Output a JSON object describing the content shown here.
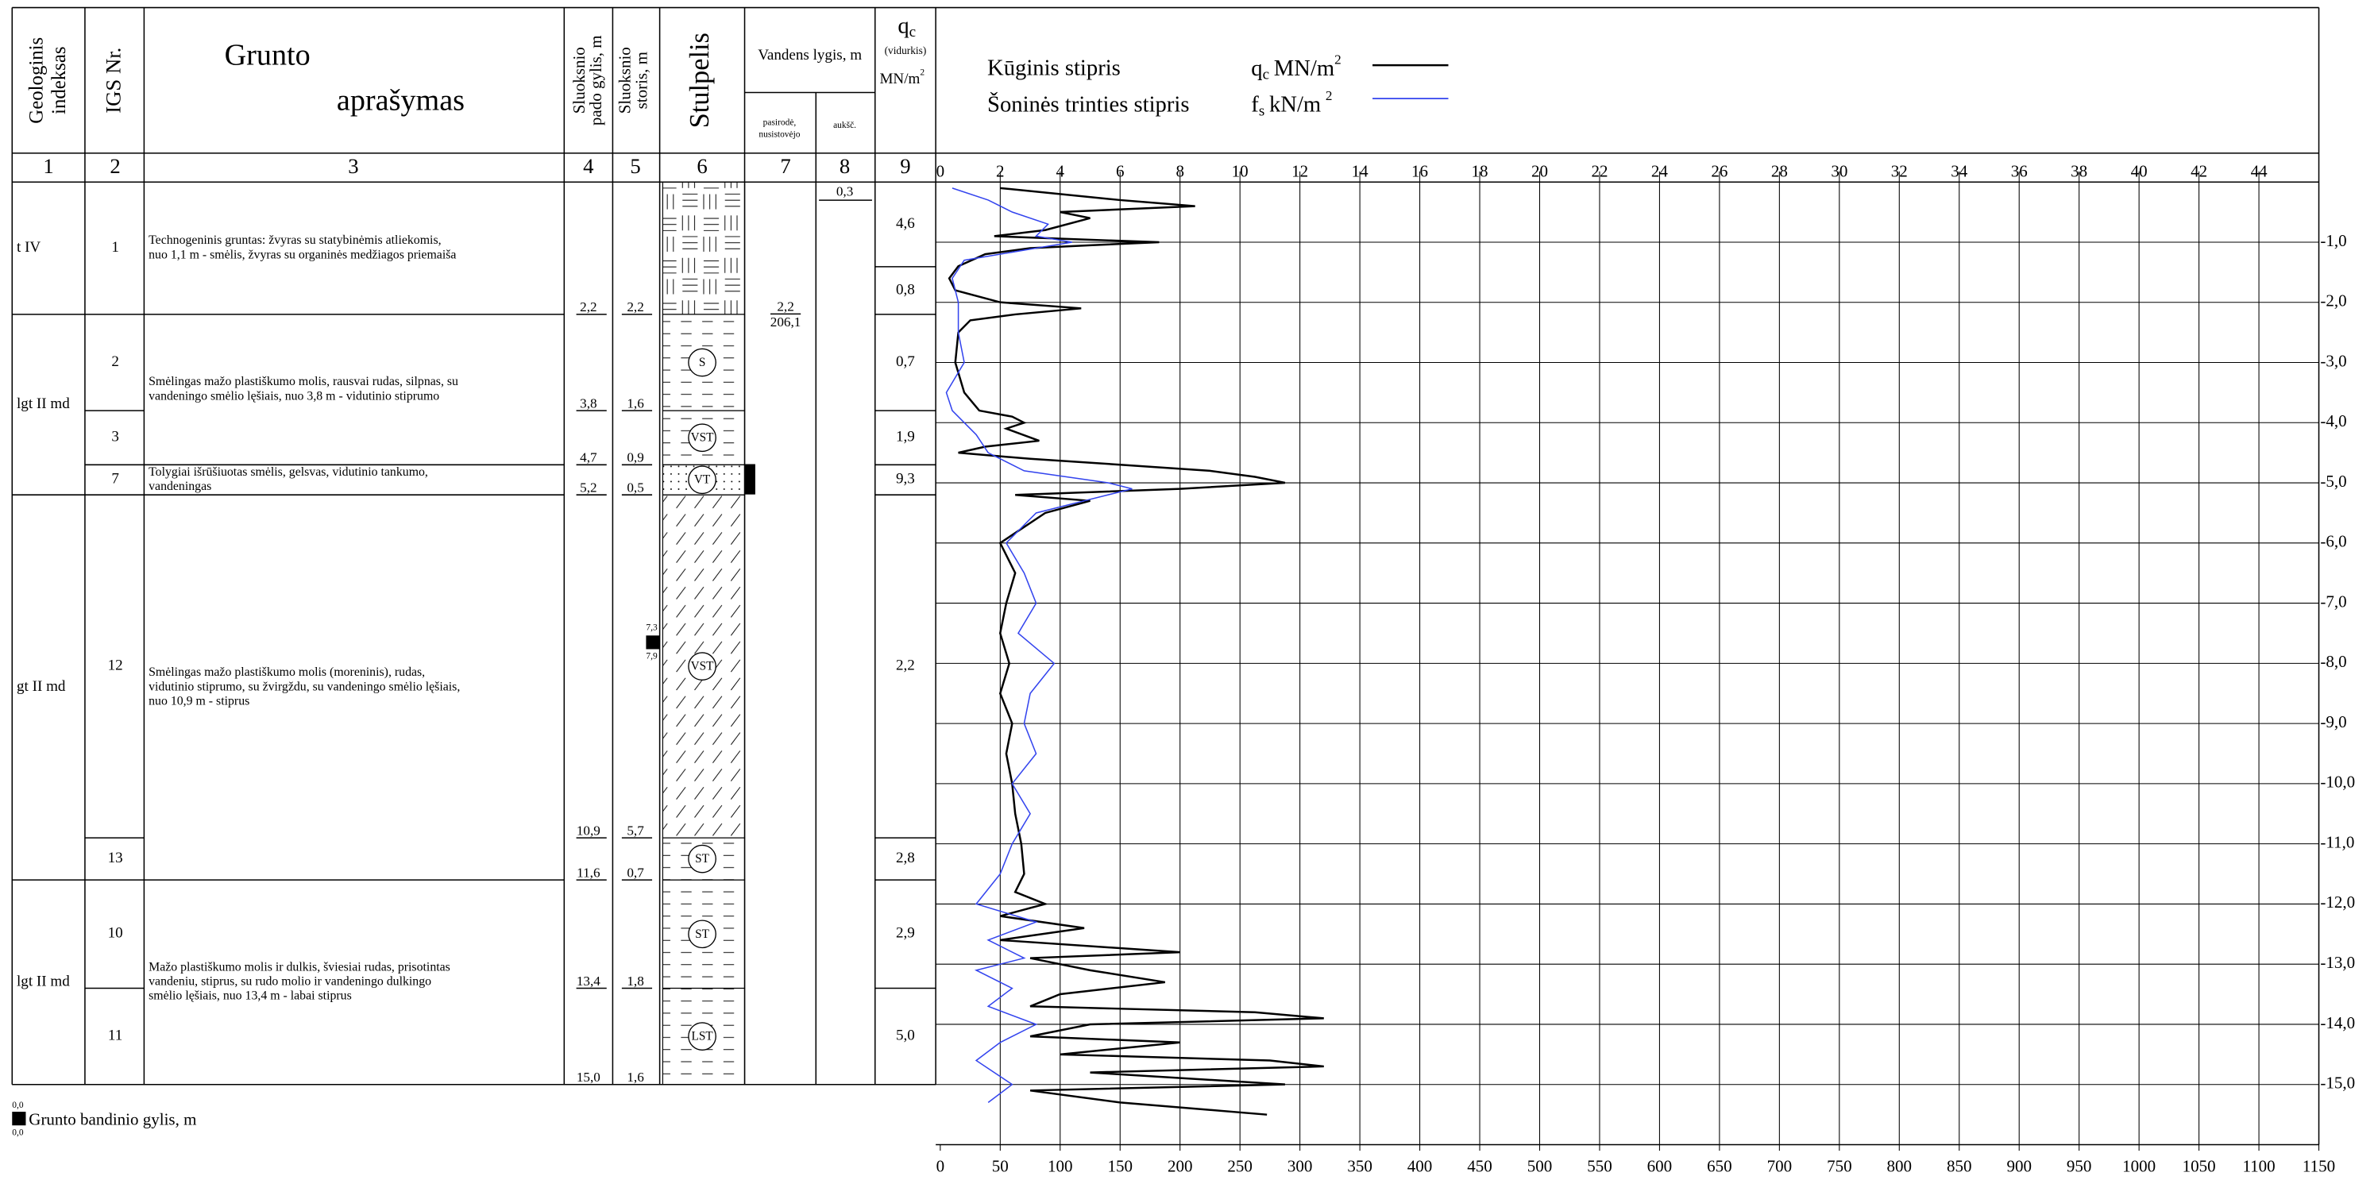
{
  "header": {
    "geo_index": [
      "Geologinis",
      "indeksas"
    ],
    "igs": "IGS Nr.",
    "description": [
      "Grunto",
      "aprašymas"
    ],
    "bottom_depth": [
      "Sluoksnio",
      "pado gylis, m"
    ],
    "thickness": [
      "Sluoksnio",
      "storis, m"
    ],
    "column": "Stulpelis",
    "water": "Vandens lygis, m",
    "water_appeared": [
      "pasirodė,",
      "nusistovėjo"
    ],
    "water_elev": "aukšč.",
    "qc_symbol": "q",
    "qc_sub": "c",
    "qc_note": "(vidurkis)",
    "qc_unit": "MN/m",
    "qc_unit_sup": "2"
  },
  "column_numbers": [
    "1",
    "2",
    "3",
    "4",
    "5",
    "6",
    "7",
    "8",
    "9"
  ],
  "log": {
    "groups": [
      {
        "index": "t IV",
        "units": [
          {
            "description": [
              "Technogeninis gruntas: žvyras su statybinėmis atliekomis,",
              "nuo 1,1 m - smėlis, žvyras su organinės medžiagos priemaiša"
            ],
            "layers": [
              {
                "igs": "1",
                "bottom": {
                  "value": 2.2,
                  "label": "2,2"
                },
                "thickness": {
                  "value": 2.2,
                  "label": "2,2"
                },
                "qc_avg": [
                  "4,6",
                  "0,8"
                ]
              }
            ]
          }
        ]
      },
      {
        "index": "lgt II md",
        "units": [
          {
            "description": [
              "Smėlingas mažo plastiškumo molis, rausvai rudas, silpnas, su",
              "vandeningo smėlio lęšiais, nuo 3,8 m - vidutinio stiprumo"
            ],
            "layers": [
              {
                "igs": "2",
                "symbol": "S",
                "bottom": {
                  "value": 3.8,
                  "label": "3,8"
                },
                "thickness": {
                  "value": 1.6,
                  "label": "1,6"
                },
                "qc_avg": [
                  "0,7"
                ]
              },
              {
                "igs": "3",
                "symbol": "VST",
                "bottom": {
                  "value": 4.7,
                  "label": "4,7"
                },
                "thickness": {
                  "value": 0.9,
                  "label": "0,9"
                },
                "qc_avg": [
                  "1,9"
                ]
              }
            ]
          },
          {
            "description": [
              "Tolygiai išrūšiuotas smėlis, gelsvas, vidutinio tankumo,",
              "vandeningas"
            ],
            "layers": [
              {
                "igs": "7",
                "symbol": "VT",
                "bottom": {
                  "value": 5.2,
                  "label": "5,2"
                },
                "thickness": {
                  "value": 0.5,
                  "label": "0,5"
                },
                "qc_avg": [
                  "9,3"
                ]
              }
            ]
          }
        ]
      },
      {
        "index": "gt II md",
        "units": [
          {
            "description": [
              "Smėlingas mažo plastiškumo molis (moreninis), rudas,",
              "vidutinio stiprumo, su žvirgždu, su vandeningo smėlio lęšiais,",
              "nuo 10,9 m - stiprus"
            ],
            "layers": [
              {
                "igs": "12",
                "symbol": "VST",
                "bottom": {
                  "value": 10.9,
                  "label": "10,9"
                },
                "thickness": {
                  "value": 5.7,
                  "label": "5,7"
                },
                "qc_avg": [
                  "2,2"
                ]
              },
              {
                "igs": "13",
                "symbol": "ST",
                "bottom": {
                  "value": 11.6,
                  "label": "11,6"
                },
                "thickness": {
                  "value": 0.7,
                  "label": "0,7"
                },
                "qc_avg": [
                  "2,8"
                ]
              }
            ]
          }
        ]
      },
      {
        "index": "lgt II md",
        "units": [
          {
            "description": [
              "Mažo plastiškumo molis ir dulkis, šviesiai rudas, prisotintas",
              "vandeniu, stiprus, su rudo molio ir vandeningo dulkingo",
              "smėlio lęšiais, nuo 13,4 m - labai stiprus"
            ],
            "layers": [
              {
                "igs": "10",
                "symbol": "ST",
                "bottom": {
                  "value": 13.4,
                  "label": "13,4"
                },
                "thickness": {
                  "value": 1.8,
                  "label": "1,8"
                },
                "qc_avg": [
                  "2,9"
                ]
              },
              {
                "igs": "11",
                "symbol": "LST",
                "bottom": {
                  "value": 15.0,
                  "label": "15,0"
                },
                "thickness": {
                  "value": 1.6,
                  "label": "1,6"
                },
                "qc_avg": [
                  "5,0"
                ]
              }
            ]
          }
        ]
      }
    ]
  },
  "water": {
    "level": "2,2",
    "elevation": "206,1",
    "appeared": "0,3"
  },
  "sample": {
    "top": "7,3",
    "bottom": "7,9"
  },
  "legend": {
    "top": "0,0",
    "bottom": "0,0",
    "label": "Grunto bandinio gylis, m"
  },
  "cpt": {
    "legend": {
      "qc_name": "Kūginis stipris",
      "fs_name": "Šoninės trinties stipris",
      "qc_symbol": "q",
      "qc_sub": "c",
      "qc_unit": "MN/m",
      "qc_sup": "2",
      "fs_symbol": "f",
      "fs_sub": "s",
      "fs_unit": "kN/m",
      "fs_sup": "2"
    },
    "qc_axis": {
      "xlim": [
        0,
        46
      ],
      "xticks": [
        0,
        2,
        4,
        6,
        8,
        10,
        12,
        14,
        16,
        18,
        20,
        22,
        24,
        26,
        28,
        30,
        32,
        34,
        36,
        38,
        40,
        42,
        44
      ]
    },
    "fs_axis": {
      "xlim": [
        0,
        1150
      ],
      "xticks": [
        0,
        50,
        100,
        150,
        200,
        250,
        300,
        350,
        400,
        450,
        500,
        550,
        600,
        650,
        700,
        750,
        800,
        850,
        900,
        950,
        1000,
        1050,
        1100,
        1150
      ]
    },
    "depth_axis": {
      "ylim": [
        0,
        16
      ],
      "yticks": [
        {
          "value": 1,
          "label": "-1,0"
        },
        {
          "value": 2,
          "label": "-2,0"
        },
        {
          "value": 3,
          "label": "-3,0"
        },
        {
          "value": 4,
          "label": "-4,0"
        },
        {
          "value": 5,
          "label": "-5,0"
        },
        {
          "value": 6,
          "label": "-6,0"
        },
        {
          "value": 7,
          "label": "-7,0"
        },
        {
          "value": 8,
          "label": "-8,0"
        },
        {
          "value": 9,
          "label": "-9,0"
        },
        {
          "value": 10,
          "label": "-10,0"
        },
        {
          "value": 11,
          "label": "-11,0"
        },
        {
          "value": 12,
          "label": "-12,0"
        },
        {
          "value": 13,
          "label": "-13,0"
        },
        {
          "value": 14,
          "label": "-14,0"
        },
        {
          "value": 15,
          "label": "-15,0"
        }
      ]
    },
    "curves": [
      {
        "axis": "qc",
        "color": "#000000",
        "depth": [
          0.1,
          0.3,
          0.4,
          0.5,
          0.6,
          0.8,
          0.9,
          0.95,
          1.0,
          1.05,
          1.1,
          1.2,
          1.4,
          1.6,
          1.8,
          2.0,
          2.1,
          2.2,
          2.3,
          2.5,
          3.0,
          3.5,
          3.8,
          3.9,
          4.0,
          4.1,
          4.3,
          4.4,
          4.5,
          4.6,
          4.7,
          4.8,
          4.9,
          5.0,
          5.1,
          5.2,
          5.3,
          5.5,
          6.0,
          6.5,
          7.0,
          7.5,
          8.0,
          8.5,
          9.0,
          9.5,
          10,
          10.5,
          11,
          11.5,
          11.8,
          12,
          12.2,
          12.4,
          12.6,
          12.8,
          12.9,
          13.1,
          13.3,
          13.5,
          13.7,
          13.8,
          13.9,
          14.0,
          14.2,
          14.3,
          14.5,
          14.6,
          14.7,
          14.8,
          15.0,
          15.1,
          15.3,
          15.5
        ],
        "values": [
          2.0,
          6,
          8.5,
          4,
          5,
          3.5,
          1.8,
          4.5,
          7.3,
          5,
          3,
          1.5,
          0.6,
          0.3,
          0.5,
          2,
          4.7,
          2.5,
          1,
          0.6,
          0.5,
          0.8,
          1.3,
          2.4,
          2.8,
          2.2,
          3.3,
          1.5,
          0.6,
          3,
          6,
          9,
          10.5,
          11.5,
          8,
          2.5,
          5,
          3.5,
          2.0,
          2.5,
          2.2,
          2.0,
          2.3,
          2.0,
          2.4,
          2.2,
          2.4,
          2.5,
          2.7,
          2.8,
          2.5,
          3.5,
          2.0,
          4.8,
          2.0,
          8,
          3,
          5,
          7.5,
          4,
          3,
          10.5,
          12.8,
          5,
          3,
          8,
          4,
          11,
          12.8,
          5,
          11.5,
          3,
          6,
          10.9
        ]
      },
      {
        "axis": "fs",
        "color": "#3344ee",
        "depth": [
          0.1,
          0.3,
          0.5,
          0.7,
          0.9,
          1.0,
          1.1,
          1.3,
          1.6,
          2.0,
          2.5,
          3.0,
          3.5,
          3.8,
          4.2,
          4.5,
          4.8,
          5.0,
          5.1,
          5.3,
          5.5,
          6.0,
          6.5,
          7.0,
          7.5,
          8.0,
          8.5,
          9.0,
          9.5,
          10,
          10.5,
          11,
          11.5,
          12,
          12.3,
          12.6,
          12.9,
          13.1,
          13.4,
          13.7,
          14.0,
          14.3,
          14.6,
          15.0,
          15.3
        ],
        "values": [
          10,
          40,
          60,
          90,
          80,
          110,
          80,
          20,
          10,
          15,
          15,
          20,
          5,
          10,
          30,
          40,
          70,
          140,
          160,
          120,
          80,
          55,
          70,
          80,
          65,
          95,
          75,
          70,
          80,
          60,
          75,
          60,
          50,
          30,
          80,
          40,
          70,
          30,
          60,
          40,
          80,
          50,
          30,
          60,
          40
        ]
      }
    ]
  }
}
